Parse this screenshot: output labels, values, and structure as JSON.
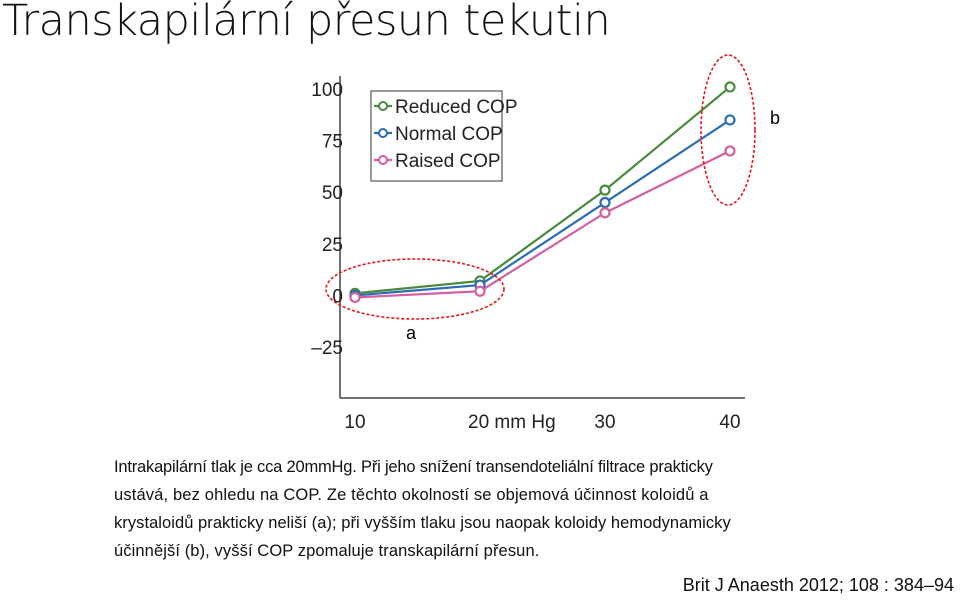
{
  "page": {
    "title": "Transkapilární přesun tekutin",
    "paragraph_lines": [
      "Intrakapilární tlak je cca 20mmHg. Při jeho snížení transendoteliální filtrace prakticky",
      "ustává, bez ohledu na COP. Ze těchto okolností se objemová účinnost koloidů a",
      "krystaloidů prakticky neliší (a); při vyšším tlaku jsou naopak koloidy hemodynamicky",
      "účinnější (b), vyšší COP zpomaluje transkapilární přesun."
    ],
    "citation": "Brit J Anaesth 2012; 108 : 384–94"
  },
  "chart_data": {
    "type": "line",
    "x": [
      10,
      20,
      30,
      40
    ],
    "x_tick_labels": [
      "10",
      "20 mm Hg",
      "30",
      "40"
    ],
    "y_ticks": [
      100,
      75,
      50,
      25,
      0,
      -25
    ],
    "y_tick_labels": [
      "100",
      "75",
      "50",
      "25",
      "0",
      "–25"
    ],
    "ylim": [
      -25,
      100
    ],
    "xlabel": "",
    "ylabel": "",
    "grid": false,
    "legend_position": "top-left",
    "series": [
      {
        "name": "Reduced COP",
        "color": "#4a8a3c",
        "values": [
          1,
          7,
          51,
          101
        ]
      },
      {
        "name": "Normal COP",
        "color": "#2a6db5",
        "values": [
          0,
          5,
          45,
          85
        ]
      },
      {
        "name": "Raised COP",
        "color": "#d4609f",
        "values": [
          -1,
          2,
          40,
          70
        ]
      }
    ],
    "annotations": [
      {
        "label": "a",
        "color": "#e8141e"
      },
      {
        "label": "b",
        "color": "#e8141e"
      }
    ]
  }
}
